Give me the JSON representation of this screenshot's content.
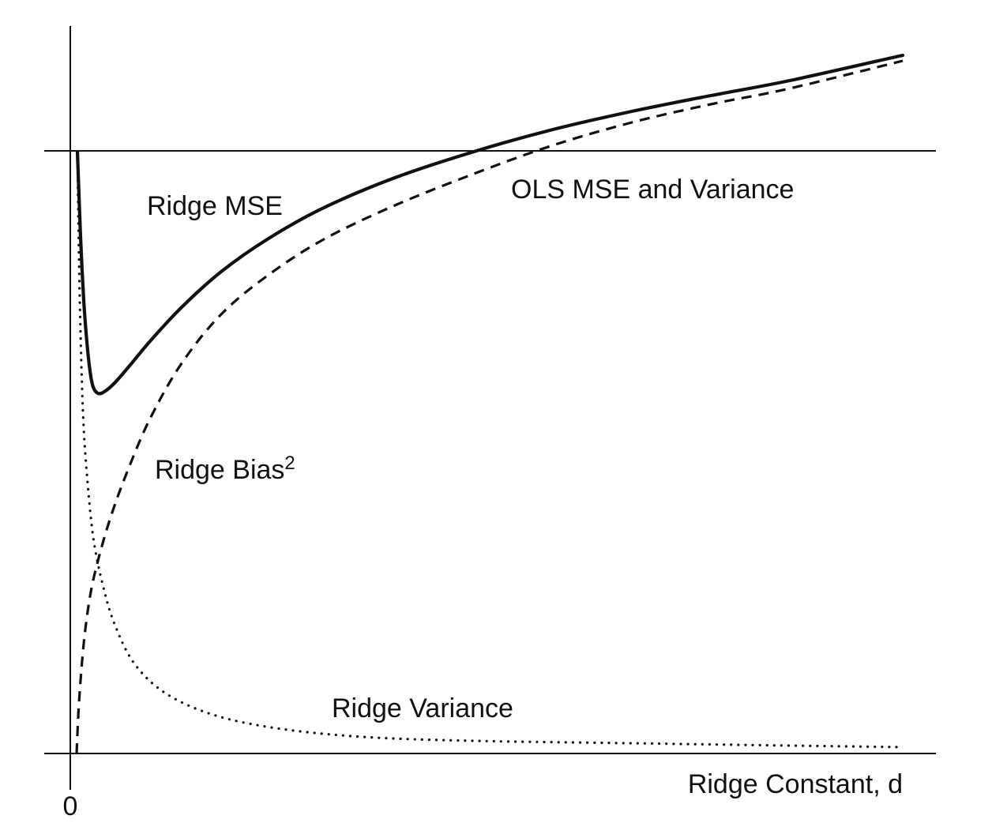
{
  "chart_data": {
    "type": "line",
    "title": "",
    "xlabel": "Ridge Constant, d",
    "ylabel": "",
    "x_tick_labels": [
      "0"
    ],
    "grid": false,
    "legend": "none",
    "series": [
      {
        "label": "Ridge MSE",
        "style": "solid"
      },
      {
        "label": "OLS MSE and Variance",
        "style": "solid-horizontal"
      },
      {
        "label": "Ridge Bias",
        "label_superscript": "2",
        "style": "dashed"
      },
      {
        "label": "Ridge Variance",
        "style": "dotted"
      }
    ],
    "colors": {
      "lines": "#111111",
      "text": "#111111",
      "background": "#ffffff"
    }
  }
}
